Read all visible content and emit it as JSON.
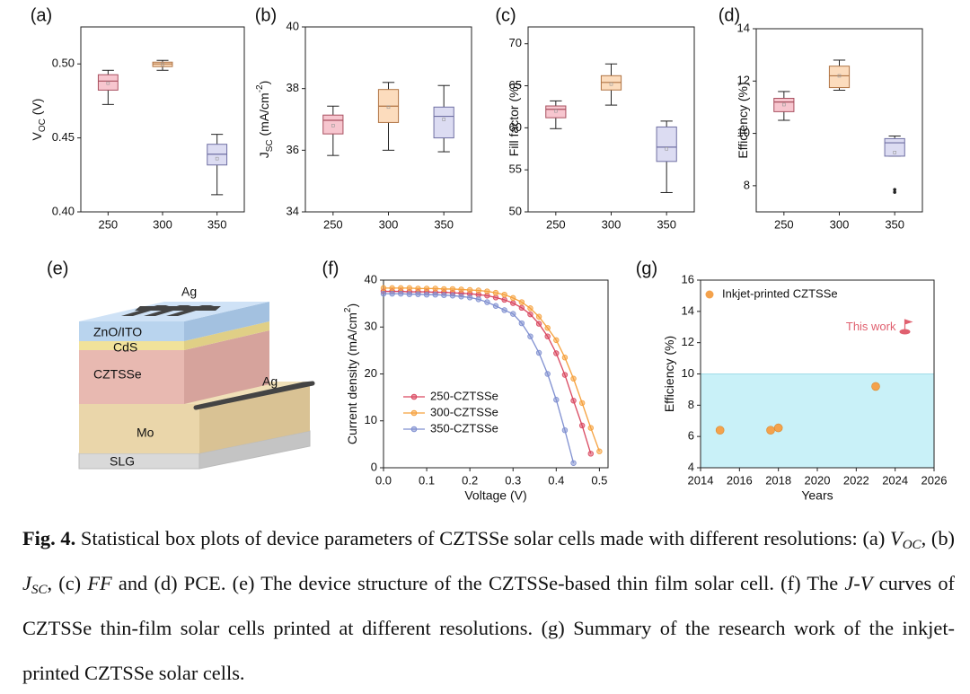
{
  "chart_data": [
    {
      "type": "box",
      "panel": "(a)",
      "ylabel_parts": [
        [
          "V",
          ""
        ],
        [
          "OC",
          "sub"
        ],
        [
          " (V)",
          ""
        ]
      ],
      "categories": [
        "250",
        "300",
        "350"
      ],
      "boxes": [
        {
          "min": 0.4726,
          "q1": 0.4823,
          "median": 0.4884,
          "q3": 0.4927,
          "max": 0.4957,
          "mean": 0.487
        },
        {
          "min": 0.4957,
          "q1": 0.4982,
          "median": 0.5,
          "q3": 0.5012,
          "max": 0.5024,
          "mean": 0.4998
        },
        {
          "min": 0.4116,
          "q1": 0.4317,
          "median": 0.439,
          "q3": 0.4457,
          "max": 0.4524,
          "mean": 0.436
        }
      ],
      "colors": [
        {
          "fill": "#f7c6cf",
          "stroke": "#a8505f"
        },
        {
          "fill": "#fcdcbd",
          "stroke": "#b07444"
        },
        {
          "fill": "#dcdcf2",
          "stroke": "#6f6fa3"
        }
      ],
      "ylim": [
        0.4,
        0.525
      ],
      "yticks": [
        {
          "value": 0.4,
          "label": "0.40"
        },
        0.45,
        {
          "value": 0.5,
          "label": "0.50"
        }
      ]
    },
    {
      "type": "box",
      "panel": "(b)",
      "ylabel_parts": [
        [
          "J",
          ""
        ],
        [
          "SC",
          "sub"
        ],
        [
          " (mA/cm",
          ""
        ],
        [
          "-2",
          "sup"
        ],
        [
          ")",
          ""
        ]
      ],
      "categories": [
        "250",
        "300",
        "350"
      ],
      "boxes": [
        {
          "min": 35.83,
          "q1": 36.53,
          "median": 36.97,
          "q3": 37.14,
          "max": 37.43,
          "mean": 36.8
        },
        {
          "min": 36.0,
          "q1": 36.9,
          "median": 37.43,
          "q3": 37.97,
          "max": 38.2,
          "mean": 37.4
        },
        {
          "min": 35.95,
          "q1": 36.4,
          "median": 37.1,
          "q3": 37.4,
          "max": 38.1,
          "mean": 37.0
        }
      ],
      "colors": [
        {
          "fill": "#f7c6cf",
          "stroke": "#a8505f"
        },
        {
          "fill": "#fcdcbd",
          "stroke": "#b07444"
        },
        {
          "fill": "#dcdcf2",
          "stroke": "#6f6fa3"
        }
      ],
      "ylim": [
        34,
        40
      ],
      "yticks": [
        34,
        36,
        38,
        40
      ]
    },
    {
      "type": "box",
      "panel": "(c)",
      "ylabel_parts": [
        [
          "Fill factor (%)",
          ""
        ]
      ],
      "categories": [
        "250",
        "300",
        "350"
      ],
      "boxes": [
        {
          "min": 59.9,
          "q1": 61.2,
          "median": 62.2,
          "q3": 62.6,
          "max": 63.2,
          "mean": 62.0
        },
        {
          "min": 62.7,
          "q1": 64.5,
          "median": 65.4,
          "q3": 66.2,
          "max": 67.6,
          "mean": 65.2
        },
        {
          "min": 52.3,
          "q1": 56.0,
          "median": 57.7,
          "q3": 60.1,
          "max": 60.8,
          "mean": 57.5
        }
      ],
      "colors": [
        {
          "fill": "#f7c6cf",
          "stroke": "#a8505f"
        },
        {
          "fill": "#fcdcbd",
          "stroke": "#b07444"
        },
        {
          "fill": "#dcdcf2",
          "stroke": "#6f6fa3"
        }
      ],
      "ylim": [
        50,
        72
      ],
      "yticks": [
        50,
        55,
        60,
        65,
        70
      ]
    },
    {
      "type": "box",
      "panel": "(d)",
      "ylabel_parts": [
        [
          "Efficiency (%)",
          ""
        ]
      ],
      "categories": [
        "250",
        "300",
        "350"
      ],
      "boxes": [
        {
          "min": 10.5,
          "q1": 10.83,
          "median": 11.2,
          "q3": 11.34,
          "max": 11.6,
          "mean": 11.1
        },
        {
          "min": 11.65,
          "q1": 11.75,
          "median": 12.2,
          "q3": 12.57,
          "max": 12.8,
          "mean": 12.2
        },
        {
          "min": 9.13,
          "q1": 9.13,
          "median": 9.64,
          "q3": 9.8,
          "max": 9.9,
          "mean": 9.27,
          "outliers": [
            7.85,
            7.75
          ]
        }
      ],
      "colors": [
        {
          "fill": "#f7c6cf",
          "stroke": "#a8505f"
        },
        {
          "fill": "#fcdcbd",
          "stroke": "#b07444"
        },
        {
          "fill": "#dcdcf2",
          "stroke": "#6f6fa3"
        }
      ],
      "ylim": [
        7,
        14
      ],
      "yticks": [
        8,
        10,
        12,
        14
      ]
    },
    {
      "type": "line",
      "panel": "(f)",
      "xlabel": "Voltage (V)",
      "ylabel_parts": [
        [
          "Current density (mA/cm",
          ""
        ],
        [
          "2",
          "sup"
        ],
        [
          ")",
          ""
        ]
      ],
      "x": [
        0,
        0.02,
        0.04,
        0.06,
        0.08,
        0.1,
        0.12,
        0.14,
        0.16,
        0.18,
        0.2,
        0.22,
        0.24,
        0.26,
        0.28,
        0.3,
        0.32,
        0.34,
        0.36,
        0.38,
        0.4,
        0.42,
        0.44,
        0.46,
        0.48,
        0.5
      ],
      "series": [
        {
          "name": "250-CZTSSe",
          "color": "#d9475f",
          "values": [
            37.6,
            37.6,
            37.6,
            37.5,
            37.5,
            37.5,
            37.4,
            37.4,
            37.3,
            37.2,
            37.1,
            36.9,
            36.7,
            36.3,
            35.8,
            35.1,
            34.1,
            32.7,
            30.7,
            28.0,
            24.4,
            19.8,
            14.3,
            9.0,
            3.0,
            null
          ]
        },
        {
          "name": "300-CZTSSe",
          "color": "#f5a03c",
          "values": [
            38.3,
            38.3,
            38.3,
            38.3,
            38.2,
            38.2,
            38.2,
            38.1,
            38.1,
            38.0,
            37.9,
            37.8,
            37.6,
            37.3,
            36.9,
            36.2,
            35.3,
            34.0,
            32.2,
            29.8,
            27.2,
            23.5,
            19.0,
            13.8,
            8.5,
            3.5
          ]
        },
        {
          "name": "350-CZTSSe",
          "color": "#7f8fd0",
          "values": [
            37.1,
            37.1,
            37.1,
            37.0,
            37.0,
            36.9,
            36.9,
            36.8,
            36.7,
            36.5,
            36.3,
            35.9,
            35.3,
            34.5,
            33.6,
            32.8,
            30.8,
            28.0,
            24.5,
            20.0,
            14.5,
            8.0,
            1.0,
            null,
            null,
            null
          ]
        }
      ],
      "xlim": [
        0,
        0.52
      ],
      "xticks": [
        {
          "value": 0,
          "label": "0.0"
        },
        0.1,
        0.2,
        0.3,
        0.4,
        0.5
      ],
      "ylim": [
        0,
        40
      ],
      "yticks": [
        0,
        10,
        20,
        30,
        40
      ],
      "legend": "lower-left"
    },
    {
      "type": "scatter",
      "panel": "(g)",
      "xlabel": "Years",
      "ylabel_parts": [
        [
          "Efficiency (%)",
          ""
        ]
      ],
      "series": [
        {
          "name": "Inkjet-printed CZTSSe",
          "color": "#f4a24c",
          "x": [
            2015,
            2017.6,
            2018,
            2023
          ],
          "values": [
            6.4,
            6.4,
            6.55,
            9.2
          ]
        }
      ],
      "shade_y": [
        4,
        10
      ],
      "shade_color": "#c9f1f8",
      "annotation": {
        "text": "This work",
        "x": 2024.5,
        "y": 12.7,
        "color": "#e0606f"
      },
      "xlim": [
        2014,
        2026
      ],
      "xticks": [
        2014,
        2016,
        2018,
        2020,
        2022,
        2024,
        2026
      ],
      "ylim": [
        4,
        16
      ],
      "yticks": [
        4,
        6,
        8,
        10,
        12,
        14,
        16
      ],
      "legend": "upper-left"
    }
  ],
  "diagram": {
    "panel": "(e)",
    "labels": {
      "top_contact": "Ag",
      "window": "ZnO/ITO",
      "buffer": "CdS",
      "absorber": "CZTSSe",
      "back_contact": "Ag",
      "electrode": "Mo",
      "substrate": "SLG"
    }
  },
  "caption": {
    "segments": [
      [
        "Fig. 4.",
        "b"
      ],
      [
        " Statistical box plots of device parameters of CZTSSe solar cells made with different resolutions: (a) ",
        ""
      ],
      [
        "V",
        "i"
      ],
      [
        "OC",
        "isub"
      ],
      [
        ", (b) ",
        ""
      ],
      [
        "J",
        "i"
      ],
      [
        "SC",
        "isub"
      ],
      [
        ", (c) ",
        ""
      ],
      [
        "FF",
        "i"
      ],
      [
        " and (d) PCE. (e) The device structure of the CZTSSe-based thin film solar cell. (f) The ",
        ""
      ],
      [
        "J-V",
        "i"
      ],
      [
        " curves of CZTSSe thin-film solar cells printed at different resolutions. (g) Summary of the research work of the inkjet-printed CZTSSe solar cells.",
        ""
      ]
    ]
  }
}
